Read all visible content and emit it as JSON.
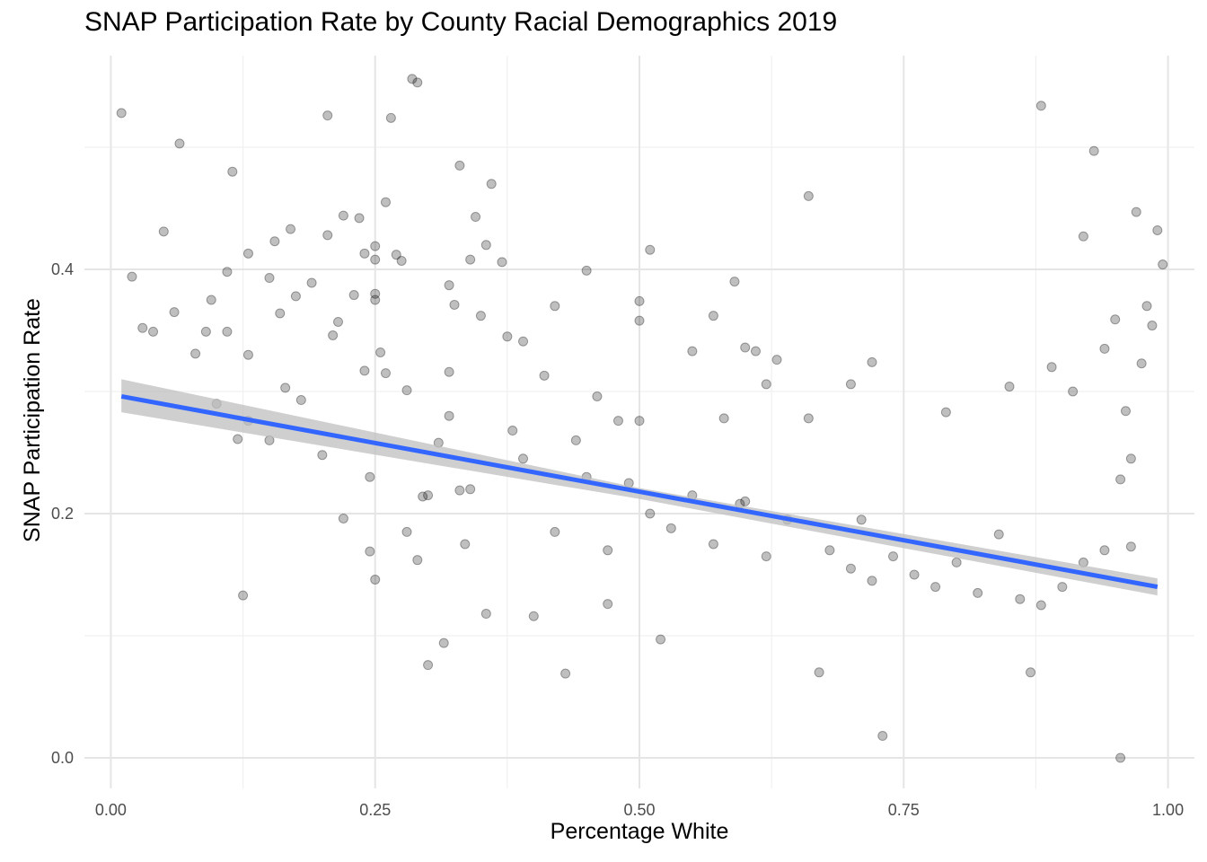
{
  "chart_data": {
    "type": "scatter",
    "title": "SNAP Participation Rate by County Racial Demographics 2019",
    "xlabel": "Percentage White",
    "ylabel": "SNAP Participation Rate",
    "xlim": [
      -0.025,
      1.025
    ],
    "ylim": [
      -0.025,
      0.575
    ],
    "x_ticks": [
      0.0,
      0.25,
      0.5,
      0.75,
      1.0
    ],
    "x_tick_labels": [
      "0.00",
      "0.25",
      "0.50",
      "0.75",
      "1.00"
    ],
    "y_ticks": [
      0.0,
      0.2,
      0.4
    ],
    "y_tick_labels": [
      "0.0",
      "0.2",
      "0.4"
    ],
    "grid": true,
    "legend": "none",
    "point_color": "#000000",
    "point_alpha": 0.25,
    "trend_color": "#3366ff",
    "band_color": "#bfbfbf",
    "trend": {
      "x": [
        0.01,
        0.99
      ],
      "y": [
        0.296,
        0.14
      ]
    },
    "band": {
      "x": [
        0.01,
        0.5,
        0.99
      ],
      "upper": [
        0.31,
        0.221,
        0.147
      ],
      "lower": [
        0.283,
        0.212,
        0.133
      ]
    },
    "points": {
      "x": [
        0.01,
        0.02,
        0.03,
        0.04,
        0.05,
        0.06,
        0.065,
        0.08,
        0.09,
        0.095,
        0.1,
        0.11,
        0.11,
        0.115,
        0.12,
        0.13,
        0.13,
        0.13,
        0.125,
        0.15,
        0.15,
        0.155,
        0.16,
        0.165,
        0.17,
        0.175,
        0.18,
        0.19,
        0.2,
        0.205,
        0.205,
        0.21,
        0.215,
        0.22,
        0.22,
        0.23,
        0.235,
        0.24,
        0.24,
        0.245,
        0.245,
        0.25,
        0.25,
        0.25,
        0.25,
        0.25,
        0.255,
        0.26,
        0.26,
        0.265,
        0.27,
        0.275,
        0.28,
        0.28,
        0.285,
        0.29,
        0.29,
        0.295,
        0.3,
        0.31,
        0.315,
        0.32,
        0.32,
        0.325,
        0.33,
        0.33,
        0.335,
        0.34,
        0.345,
        0.35,
        0.355,
        0.355,
        0.36,
        0.37,
        0.375,
        0.38,
        0.39,
        0.39,
        0.4,
        0.41,
        0.42,
        0.43,
        0.44,
        0.45,
        0.46,
        0.47,
        0.48,
        0.5,
        0.5,
        0.5,
        0.51,
        0.52,
        0.55,
        0.57,
        0.58,
        0.59,
        0.6,
        0.61,
        0.62,
        0.63,
        0.66,
        0.67,
        0.7,
        0.72,
        0.73,
        0.79,
        0.85,
        0.87,
        0.88,
        0.89,
        0.91,
        0.92,
        0.93,
        0.94,
        0.95,
        0.955,
        0.96,
        0.965,
        0.97,
        0.975,
        0.98,
        0.985,
        0.99,
        0.995,
        0.66,
        0.955,
        0.595,
        0.71,
        0.84,
        0.965,
        0.3,
        0.32,
        0.34,
        0.42,
        0.45,
        0.47,
        0.49,
        0.51,
        0.53,
        0.55,
        0.57,
        0.6,
        0.62,
        0.64,
        0.68,
        0.7,
        0.72,
        0.74,
        0.76,
        0.78,
        0.8,
        0.82,
        0.86,
        0.88,
        0.9,
        0.92,
        0.94
      ],
      "y": [
        0.528,
        0.394,
        0.352,
        0.349,
        0.431,
        0.365,
        0.503,
        0.331,
        0.349,
        0.375,
        0.29,
        0.398,
        0.349,
        0.48,
        0.261,
        0.413,
        0.33,
        0.276,
        0.133,
        0.393,
        0.26,
        0.423,
        0.364,
        0.303,
        0.433,
        0.378,
        0.293,
        0.389,
        0.248,
        0.526,
        0.428,
        0.346,
        0.357,
        0.196,
        0.444,
        0.379,
        0.442,
        0.317,
        0.413,
        0.23,
        0.169,
        0.408,
        0.419,
        0.38,
        0.375,
        0.146,
        0.332,
        0.455,
        0.315,
        0.524,
        0.412,
        0.407,
        0.301,
        0.185,
        0.556,
        0.553,
        0.162,
        0.214,
        0.076,
        0.258,
        0.094,
        0.316,
        0.387,
        0.371,
        0.485,
        0.219,
        0.175,
        0.408,
        0.443,
        0.362,
        0.42,
        0.118,
        0.47,
        0.406,
        0.345,
        0.268,
        0.245,
        0.341,
        0.116,
        0.313,
        0.37,
        0.069,
        0.26,
        0.399,
        0.296,
        0.126,
        0.276,
        0.374,
        0.358,
        0.276,
        0.416,
        0.097,
        0.333,
        0.362,
        0.278,
        0.39,
        0.336,
        0.333,
        0.306,
        0.326,
        0.46,
        0.07,
        0.306,
        0.324,
        0.018,
        0.283,
        0.304,
        0.07,
        0.534,
        0.32,
        0.3,
        0.427,
        0.497,
        0.335,
        0.359,
        0.0,
        0.284,
        0.245,
        0.447,
        0.323,
        0.37,
        0.354,
        0.432,
        0.404,
        0.278,
        0.228,
        0.208,
        0.195,
        0.183,
        0.173,
        0.215,
        0.28,
        0.22,
        0.185,
        0.23,
        0.17,
        0.225,
        0.2,
        0.188,
        0.215,
        0.175,
        0.21,
        0.165,
        0.195,
        0.17,
        0.155,
        0.145,
        0.165,
        0.15,
        0.14,
        0.16,
        0.135,
        0.13,
        0.125,
        0.14,
        0.16,
        0.17
      ]
    }
  }
}
